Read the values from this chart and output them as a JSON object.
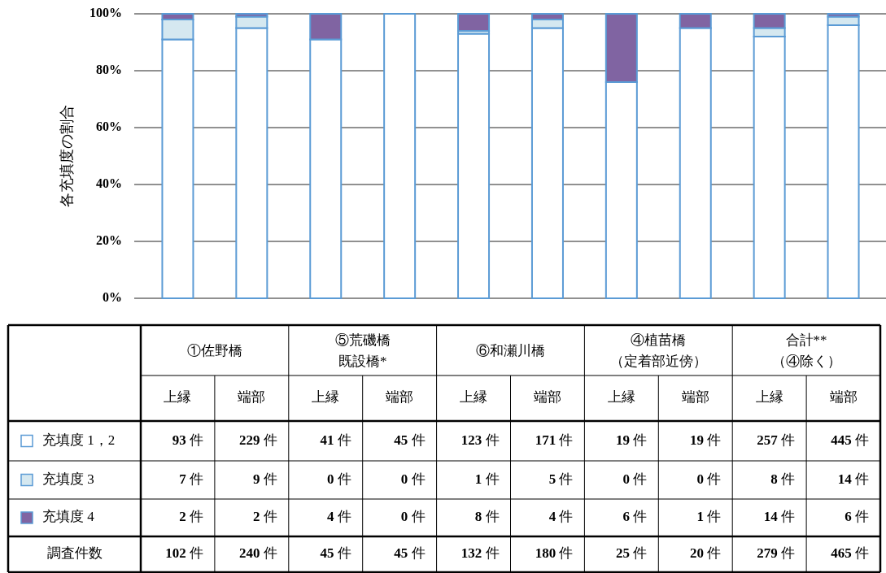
{
  "chart_data": [
    {
      "type": "bar",
      "stacked": true,
      "ylabel": "各充填度の割合",
      "categories": [
        null,
        null,
        null,
        null,
        null,
        null,
        null,
        null,
        null,
        null
      ],
      "series": [
        {
          "color": "#ffffff",
          "values": [
            91,
            95,
            91,
            100,
            93,
            95,
            76,
            95,
            92,
            96
          ]
        },
        {
          "color": "#d5e8f0",
          "values": [
            7,
            4,
            0,
            0,
            1,
            3,
            0,
            0,
            3,
            3
          ]
        },
        {
          "color": "#8064a2",
          "values": [
            2,
            1,
            9,
            0,
            6,
            2,
            24,
            5,
            5,
            1
          ]
        }
      ],
      "ylim": [
        0,
        100
      ],
      "yticks": [
        {
          "value": 0,
          "label": "0%"
        },
        {
          "value": 20,
          "label": "20%"
        },
        {
          "value": 40,
          "label": "40%"
        },
        {
          "value": 60,
          "label": "60%"
        },
        {
          "value": 80,
          "label": "80%"
        },
        {
          "value": 100,
          "label": "100%"
        }
      ],
      "grid": "y",
      "tick_labels": "y"
    },
    {
      "type": "other",
      "legend": "left",
      "categories": [
        "上縁",
        "端部",
        "上縁",
        "端部",
        "上縁",
        "端部",
        "上縁",
        "端部",
        "上縁",
        "端部"
      ],
      "annotations": [
        "①佐野橋",
        "⑤荒磯橋既設橋*",
        "⑥和瀬川橋",
        "④植苗橋（定着部近傍）",
        "合計**（④除く）"
      ],
      "series": [
        {
          "name": "充填度 1，2",
          "color": "#ffffff",
          "values": [
            93,
            229,
            41,
            45,
            123,
            171,
            19,
            19,
            257,
            445
          ],
          "value_labels": [
            "93 件",
            "229 件",
            "41 件",
            "45 件",
            "123 件",
            "171 件",
            "19 件",
            "19 件",
            "257 件",
            "445 件"
          ]
        },
        {
          "name": "充填度 3",
          "color": "#d5e8f0",
          "values": [
            7,
            9,
            0,
            0,
            1,
            5,
            0,
            0,
            8,
            14
          ],
          "value_labels": [
            "7 件",
            "9 件",
            "0 件",
            "0 件",
            "1 件",
            "5 件",
            "0 件",
            "0 件",
            "8 件",
            "14 件"
          ]
        },
        {
          "name": "充填度 4",
          "color": "#8064a2",
          "values": [
            2,
            2,
            4,
            0,
            8,
            4,
            6,
            1,
            14,
            6
          ],
          "value_labels": [
            "2 件",
            "2 件",
            "4 件",
            "0 件",
            "8 件",
            "4 件",
            "6 件",
            "1 件",
            "14 件",
            "6 件"
          ]
        },
        {
          "name": "調査件数",
          "values": [
            102,
            240,
            45,
            45,
            132,
            180,
            25,
            20,
            279,
            465
          ],
          "value_labels": [
            "102 件",
            "240 件",
            "45 件",
            "45 件",
            "132 件",
            "180 件",
            "25 件",
            "20 件",
            "279 件",
            "465 件"
          ]
        }
      ]
    }
  ]
}
